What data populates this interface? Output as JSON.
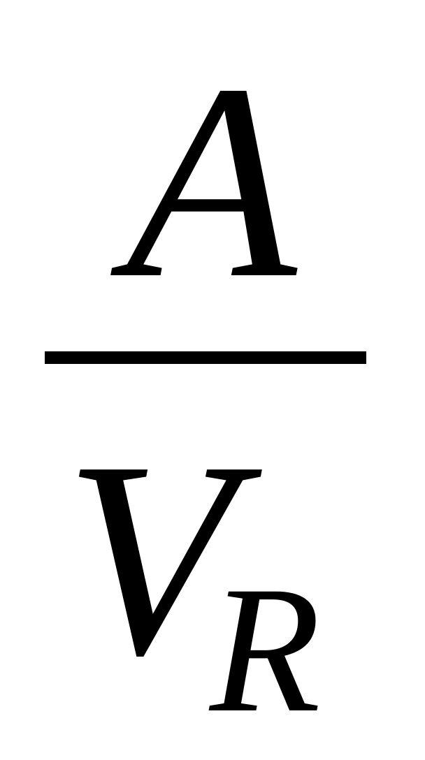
{
  "formula": {
    "numerator": "A",
    "denominator": "V",
    "denominator_subscript": "R"
  },
  "colors": {
    "text": "#000000",
    "background": "#ffffff"
  }
}
